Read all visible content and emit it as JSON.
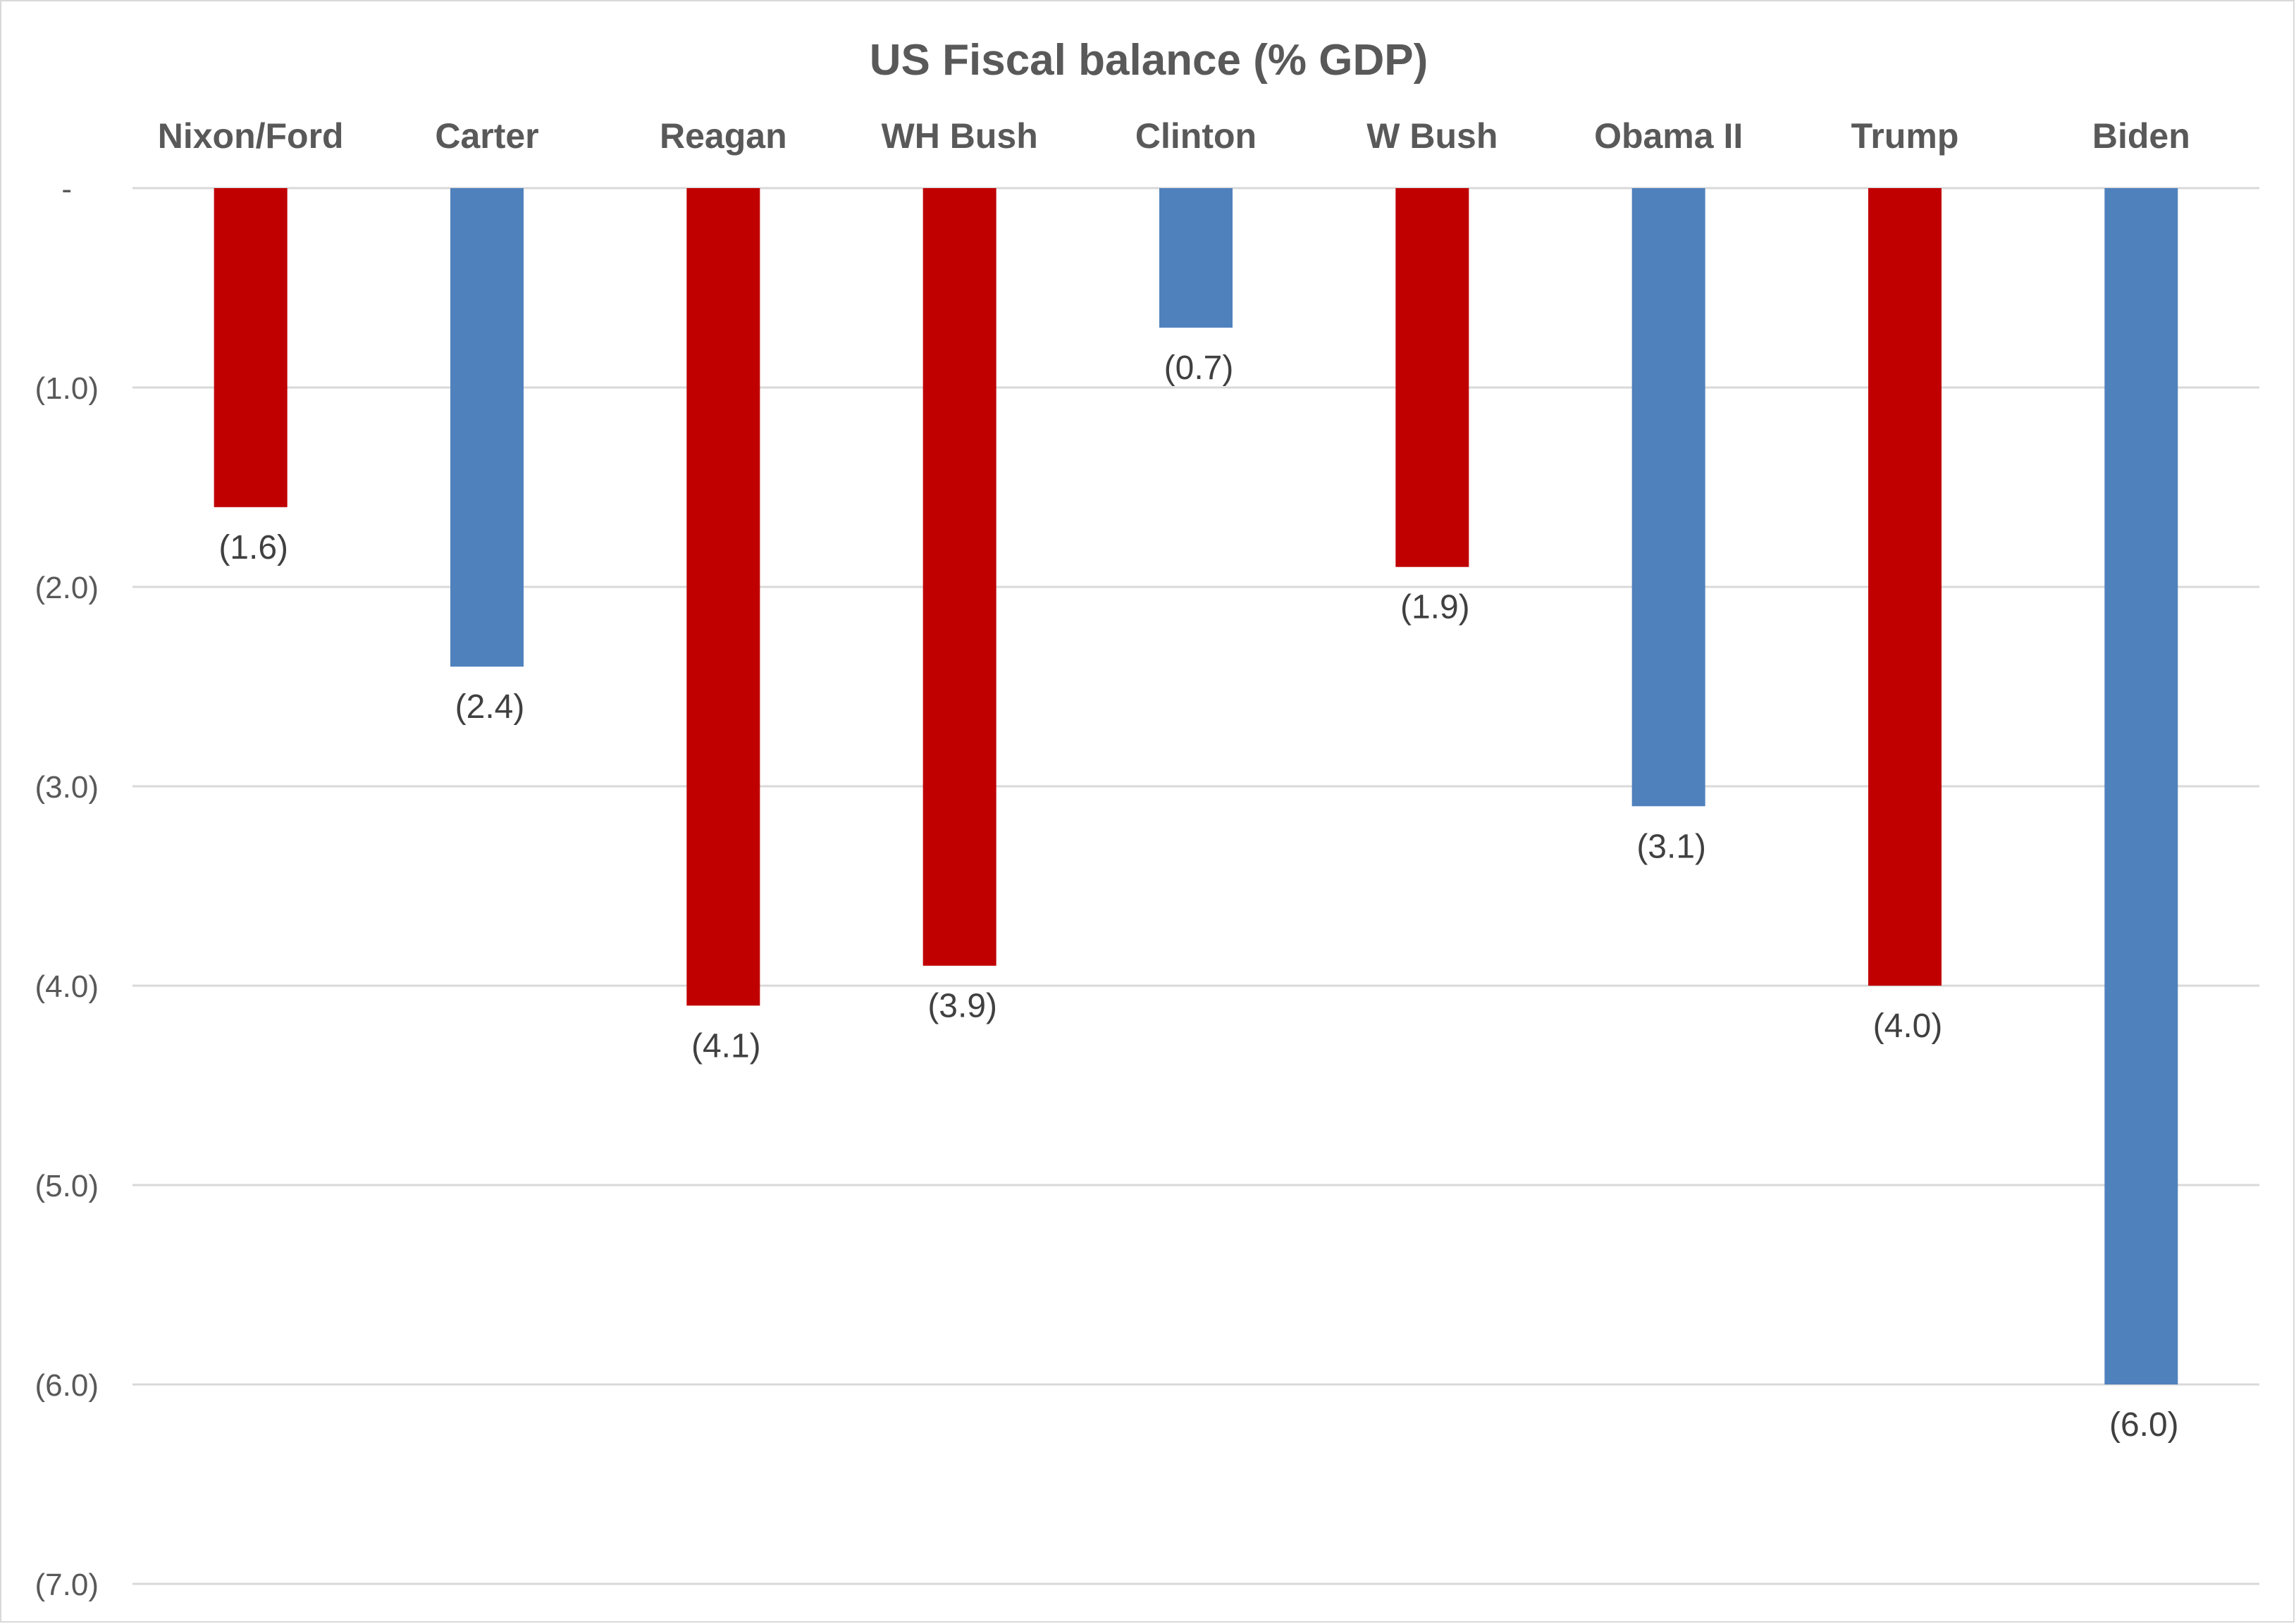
{
  "chart_data": {
    "type": "bar",
    "title": "US Fiscal balance (% GDP)",
    "categories": [
      "Nixon/Ford",
      "Carter",
      "Reagan",
      "WH Bush",
      "Clinton",
      "W Bush",
      "Obama II",
      "Trump",
      "Biden"
    ],
    "values": [
      -1.6,
      -2.4,
      -4.1,
      -3.9,
      -0.7,
      -1.9,
      -3.1,
      -4.0,
      -6.0
    ],
    "data_labels": [
      "(1.6)",
      "(2.4)",
      "(4.1)",
      "(3.9)",
      "(0.7)",
      "(1.9)",
      "(3.1)",
      "(4.0)",
      "(6.0)"
    ],
    "party_colors": [
      "#C00000",
      "#4F81BD",
      "#C00000",
      "#C00000",
      "#4F81BD",
      "#C00000",
      "#4F81BD",
      "#C00000",
      "#4F81BD"
    ],
    "y_ticks": [
      0,
      -1,
      -2,
      -3,
      -4,
      -5,
      -6,
      -7
    ],
    "y_tick_labels": [
      "-",
      "(1.0)",
      "(2.0)",
      "(3.0)",
      "(4.0)",
      "(5.0)",
      "(6.0)",
      "(7.0)"
    ],
    "ylim": [
      -7,
      0
    ],
    "xlabel": "",
    "ylabel": "",
    "category_axis_position": "top",
    "grid": true,
    "legend": "none"
  }
}
